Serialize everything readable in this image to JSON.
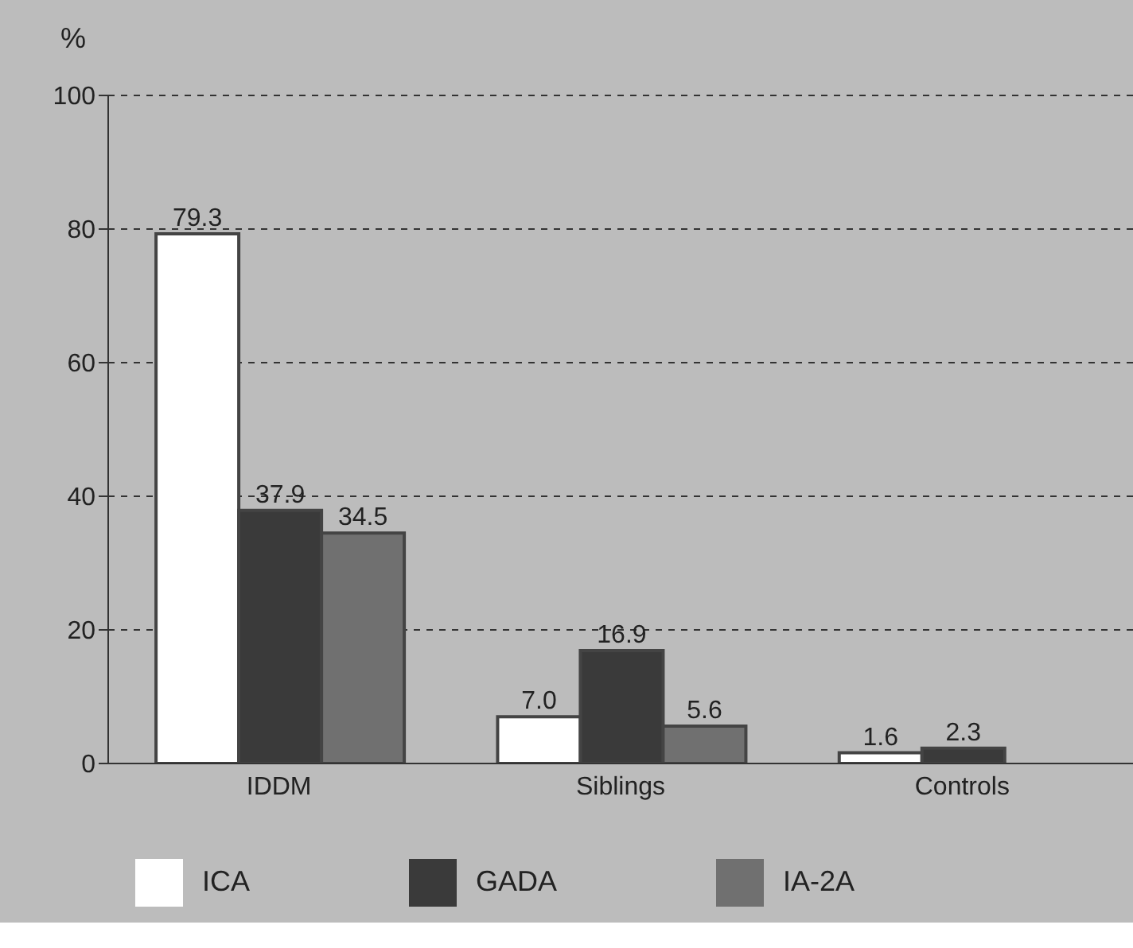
{
  "chart_data": {
    "type": "bar",
    "ylabel": "%",
    "categories": [
      "IDDM",
      "Siblings",
      "Controls"
    ],
    "series": [
      {
        "name": "ICA",
        "color": "#ffffff",
        "values": [
          79.3,
          7.0,
          1.6
        ],
        "value_labels": [
          "79.3",
          "7.0",
          "1.6"
        ]
      },
      {
        "name": "GADA",
        "color": "#3a3a3a",
        "values": [
          37.9,
          16.9,
          2.3
        ],
        "value_labels": [
          "37.9",
          "16.9",
          "2.3"
        ]
      },
      {
        "name": "IA-2A",
        "color": "#707070",
        "values": [
          34.5,
          5.6,
          null
        ],
        "value_labels": [
          "34.5",
          "5.6",
          null
        ]
      }
    ],
    "ylim": [
      0,
      100
    ],
    "yticks": [
      0,
      20,
      40,
      60,
      80,
      100
    ],
    "grid": "y",
    "legend": "bottom"
  }
}
